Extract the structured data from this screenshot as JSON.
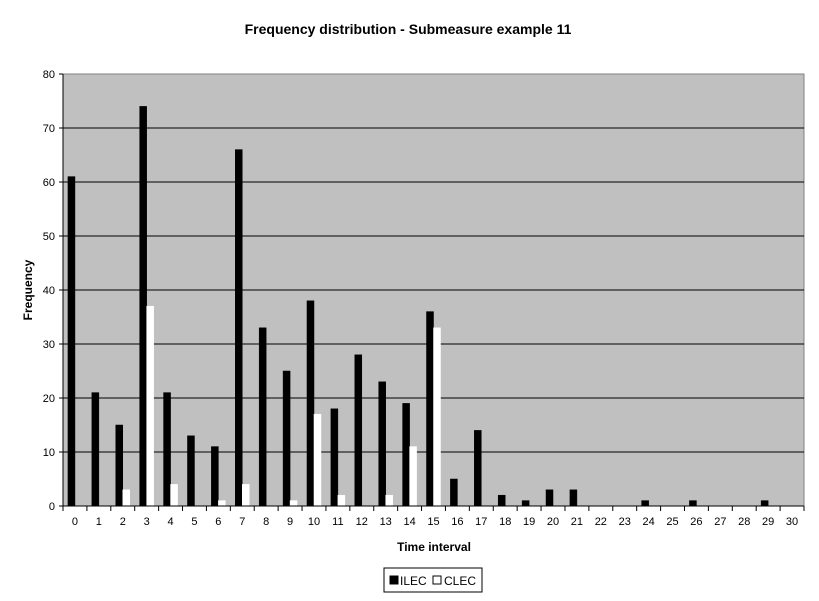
{
  "chart_data": {
    "type": "bar",
    "title": "Frequency distribution - Submeasure example 11",
    "xlabel": "Time interval",
    "ylabel": "Frequency",
    "ylim": [
      0,
      80
    ],
    "yticks": [
      "0",
      "10",
      "20",
      "30",
      "40",
      "50",
      "60",
      "70",
      "80"
    ],
    "categories": [
      "0",
      "1",
      "2",
      "3",
      "4",
      "5",
      "6",
      "7",
      "8",
      "9",
      "10",
      "11",
      "12",
      "13",
      "14",
      "15",
      "16",
      "17",
      "18",
      "19",
      "20",
      "21",
      "22",
      "23",
      "24",
      "25",
      "26",
      "27",
      "28",
      "29",
      "30"
    ],
    "series": [
      {
        "name": "ILEC",
        "color": "#000000",
        "values": [
          61,
          21,
          15,
          74,
          21,
          13,
          11,
          66,
          33,
          25,
          38,
          18,
          28,
          23,
          19,
          36,
          5,
          14,
          2,
          1,
          3,
          3,
          0,
          0,
          1,
          0,
          1,
          0,
          0,
          1,
          0
        ]
      },
      {
        "name": "CLEC",
        "color": "#ffffff",
        "values": [
          0,
          0,
          3,
          37,
          4,
          0,
          1,
          4,
          0,
          1,
          17,
          2,
          0,
          2,
          11,
          33,
          0,
          0,
          0,
          0,
          0,
          0,
          0,
          0,
          0,
          0,
          0,
          0,
          0,
          0,
          0
        ]
      }
    ],
    "grid": true,
    "legend_position": "bottom-center",
    "plot_background": "#c0c0c0"
  }
}
